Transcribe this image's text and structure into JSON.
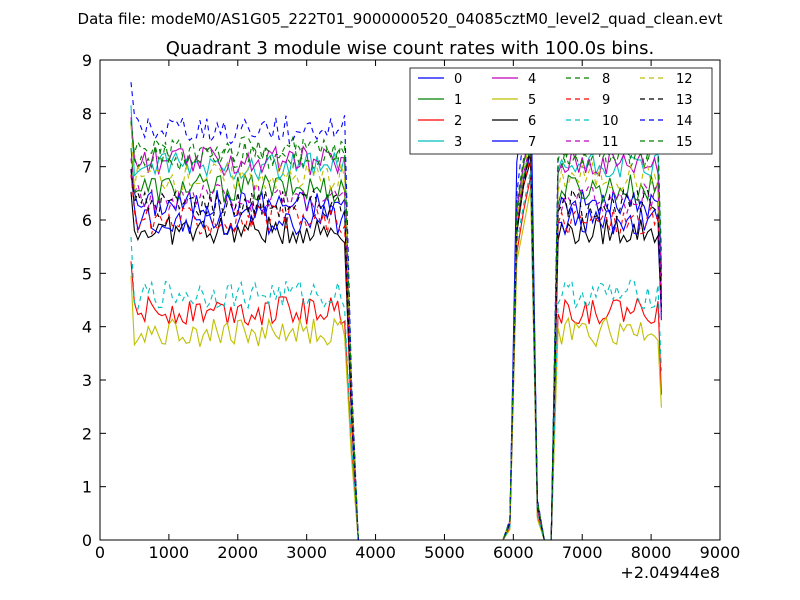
{
  "figure": {
    "suptitle": "Data file: modeM0/AS1G05_222T01_9000000520_04085cztM0_level2_quad_clean.evt"
  },
  "chart_data": {
    "type": "line",
    "title": "Quadrant 3 module wise count rates with 100.0s bins.",
    "xlabel": "",
    "ylabel": "",
    "x_offset_label": "+2.04944e8",
    "xlim": [
      0,
      9000
    ],
    "ylim": [
      0,
      9
    ],
    "x_ticks": [
      0,
      1000,
      2000,
      3000,
      4000,
      5000,
      6000,
      7000,
      8000,
      9000
    ],
    "y_ticks": [
      0,
      1,
      2,
      3,
      4,
      5,
      6,
      7,
      8,
      9
    ],
    "grid": false,
    "legend": {
      "placement": "top-right",
      "columns": 4
    },
    "segments": [
      {
        "x_start": 450,
        "x_end": 3550,
        "step": 50
      },
      {
        "x_start": 6650,
        "x_end": 8150,
        "step": 50
      }
    ],
    "gap_profile": {
      "x": [
        3550,
        3650,
        3750,
        5750,
        5850,
        5950,
        6050,
        6150,
        6250,
        6350,
        6450,
        6550
      ],
      "fraction": [
        1.0,
        0.4,
        0.0,
        0.0,
        0.0,
        0.05,
        0.8,
        0.92,
        1.0,
        0.1,
        0.0,
        0.0
      ]
    },
    "series": [
      {
        "name": "0",
        "color": "#0000ff",
        "dash": "solid",
        "level": 6.3,
        "peak": 7.3
      },
      {
        "name": "1",
        "color": "#008000",
        "dash": "solid",
        "level": 6.6,
        "peak": 7.4
      },
      {
        "name": "2",
        "color": "#ff0000",
        "dash": "solid",
        "level": 4.3,
        "peak": 6.8
      },
      {
        "name": "3",
        "color": "#00bfbf",
        "dash": "solid",
        "level": 7.0,
        "peak": 7.6
      },
      {
        "name": "4",
        "color": "#bf00bf",
        "dash": "solid",
        "level": 7.1,
        "peak": 7.7
      },
      {
        "name": "5",
        "color": "#bfbf00",
        "dash": "solid",
        "level": 3.9,
        "peak": 6.5
      },
      {
        "name": "6",
        "color": "#000000",
        "dash": "solid",
        "level": 5.8,
        "peak": 7.2
      },
      {
        "name": "7",
        "color": "#0000ff",
        "dash": "solid",
        "level": 6.0,
        "peak": 8.9
      },
      {
        "name": "8",
        "color": "#008000",
        "dash": "dashed",
        "level": 7.2,
        "peak": 7.6
      },
      {
        "name": "9",
        "color": "#ff0000",
        "dash": "dashed",
        "level": 6.0,
        "peak": 7.2
      },
      {
        "name": "10",
        "color": "#00bfbf",
        "dash": "dashed",
        "level": 4.6,
        "peak": 6.9
      },
      {
        "name": "11",
        "color": "#bf00bf",
        "dash": "dashed",
        "level": 6.4,
        "peak": 7.4
      },
      {
        "name": "12",
        "color": "#bfbf00",
        "dash": "dashed",
        "level": 6.8,
        "peak": 7.5
      },
      {
        "name": "13",
        "color": "#000000",
        "dash": "dashed",
        "level": 6.3,
        "peak": 7.3
      },
      {
        "name": "14",
        "color": "#0000ff",
        "dash": "dashed",
        "level": 7.7,
        "peak": 8.2
      },
      {
        "name": "15",
        "color": "#008000",
        "dash": "dashed",
        "level": 7.3,
        "peak": 7.8
      }
    ]
  }
}
